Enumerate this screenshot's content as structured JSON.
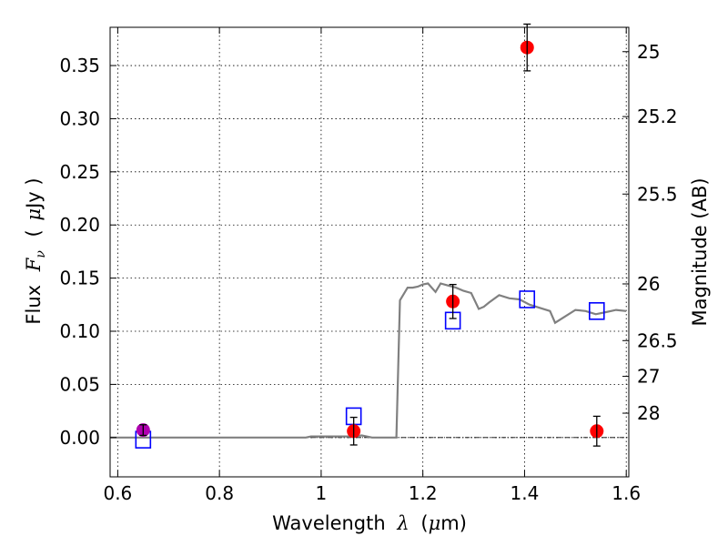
{
  "chart_data": {
    "type": "scatter",
    "xlabel": {
      "prefix": "Wavelength",
      "symbol": "λ",
      "unit_open": "(",
      "unit_mu": "μ",
      "unit_rest": "m)"
    },
    "ylabel": {
      "prefix": "Flux",
      "symbol": "F",
      "subscript": "ν",
      "unit_open": "(",
      "unit_mu": "μ",
      "unit_rest": "Jy )"
    },
    "ylabel_right": "Magnitude (AB)",
    "xlim": [
      0.585,
      1.605
    ],
    "ylim": [
      -0.037,
      0.386
    ],
    "grid": true,
    "x_ticks": [
      {
        "value": 0.6,
        "label": "0.6"
      },
      {
        "value": 0.8,
        "label": "0.8"
      },
      {
        "value": 1.0,
        "label": "1"
      },
      {
        "value": 1.2,
        "label": "1.2"
      },
      {
        "value": 1.4,
        "label": "1.4"
      },
      {
        "value": 1.6,
        "label": "1.6"
      }
    ],
    "y_ticks": [
      {
        "value": 0.0,
        "label": "0.00"
      },
      {
        "value": 0.05,
        "label": "0.05"
      },
      {
        "value": 0.1,
        "label": "0.10"
      },
      {
        "value": 0.15,
        "label": "0.15"
      },
      {
        "value": 0.2,
        "label": "0.20"
      },
      {
        "value": 0.25,
        "label": "0.25"
      },
      {
        "value": 0.3,
        "label": "0.30"
      },
      {
        "value": 0.35,
        "label": "0.35"
      }
    ],
    "right_ticks": [
      {
        "mag": 25,
        "label": "25"
      },
      {
        "mag": 25.2,
        "label": "25.2"
      },
      {
        "mag": 25.5,
        "label": "25.5"
      },
      {
        "mag": 26,
        "label": "26"
      },
      {
        "mag": 26.5,
        "label": "26.5"
      },
      {
        "mag": 27,
        "label": "27"
      },
      {
        "mag": 28,
        "label": "28"
      }
    ],
    "series": [
      {
        "kind": "line",
        "color": "#808080",
        "x": [
          0.585,
          0.9,
          0.97,
          0.98,
          1.0,
          1.06,
          1.08,
          1.1,
          1.148,
          1.155,
          1.17,
          1.18,
          1.19,
          1.2,
          1.21,
          1.225,
          1.235,
          1.25,
          1.265,
          1.28,
          1.295,
          1.31,
          1.32,
          1.33,
          1.35,
          1.37,
          1.39,
          1.41,
          1.43,
          1.45,
          1.46,
          1.48,
          1.5,
          1.52,
          1.54,
          1.56,
          1.58,
          1.6
        ],
        "y": [
          0.0,
          0.0,
          0.0,
          0.001,
          0.001,
          0.001,
          0.002,
          0.0,
          0.0,
          0.129,
          0.141,
          0.141,
          0.142,
          0.144,
          0.145,
          0.137,
          0.145,
          0.143,
          0.141,
          0.138,
          0.136,
          0.121,
          0.123,
          0.127,
          0.134,
          0.131,
          0.13,
          0.125,
          0.122,
          0.119,
          0.108,
          0.114,
          0.12,
          0.119,
          0.116,
          0.118,
          0.12,
          0.119
        ]
      },
      {
        "kind": "squares",
        "color": "#0000ff",
        "x": [
          0.65,
          1.064,
          1.259,
          1.405,
          1.542
        ],
        "y": [
          -0.002,
          0.02,
          0.11,
          0.13,
          0.119
        ]
      },
      {
        "kind": "points",
        "color": "#ff0000",
        "x": [
          1.064,
          1.259,
          1.405,
          1.542
        ],
        "y": [
          0.006,
          0.128,
          0.367,
          0.006
        ],
        "yerr": [
          0.013,
          0.016,
          0.022,
          0.014
        ]
      },
      {
        "kind": "points",
        "color": "#b000b0",
        "x": [
          0.65
        ],
        "y": [
          0.007
        ],
        "yerr": [
          0.005
        ]
      }
    ]
  }
}
